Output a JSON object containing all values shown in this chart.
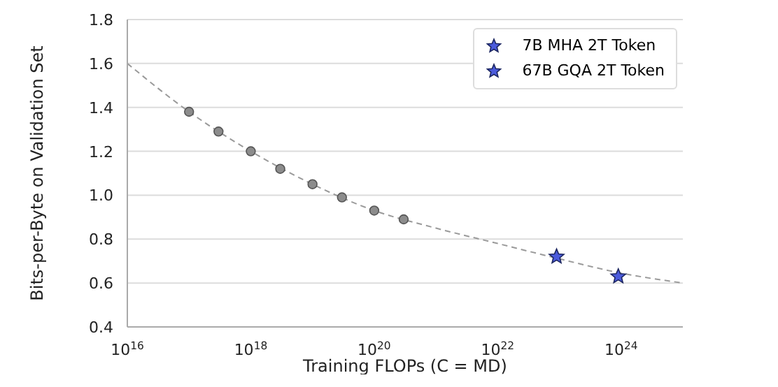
{
  "chart_data": {
    "type": "scatter",
    "xlabel": "Training FLOPs (C = MD)",
    "ylabel": "Bits-per-Byte on Validation Set",
    "log": "x",
    "xlim": [
      1e+16,
      1e+25
    ],
    "xticks": [
      {
        "value": 1e+16,
        "label": "10$^{16}$"
      },
      {
        "value": 1e+18,
        "label": "10$^{18}$"
      },
      {
        "value": 1e+20,
        "label": "10$^{20}$"
      },
      {
        "value": 1e+22,
        "label": "10$^{22}$"
      },
      {
        "value": 1e+24,
        "label": "10$^{24}$"
      }
    ],
    "ylim": [
      0.4,
      1.8
    ],
    "yticks": [
      0.4,
      0.6,
      0.8,
      {
        "value": 1,
        "label": "1.0"
      },
      1.2,
      1.4,
      1.6,
      1.8
    ],
    "grid": "y",
    "legend": "top right",
    "series": [
      {
        "type": "line",
        "color": "#9a9a9a",
        "line_style": "dashed",
        "marker": "none",
        "x": [
          1e+16,
          1e+17,
          1e+18,
          1e+19,
          1e+20,
          1e+21,
          1e+22,
          1e+23,
          1e+24,
          1e+25
        ],
        "values": [
          1.6,
          1.38,
          1.2,
          1.05,
          0.93,
          0.85,
          0.78,
          0.71,
          0.645,
          0.6
        ]
      },
      {
        "color": "#8c8c8c",
        "marker": "circle",
        "x": [
          1e+17,
          3e+17,
          1e+18,
          3e+18,
          1e+19,
          3e+19,
          1e+20,
          3e+20
        ],
        "values": [
          1.38,
          1.29,
          1.2,
          1.12,
          1.05,
          0.99,
          0.93,
          0.89
        ]
      },
      {
        "name": "7B MHA 2T Token",
        "color": "#4b5bdc",
        "marker": "star",
        "x": [
          9e+22
        ],
        "values": [
          0.72
        ]
      },
      {
        "name": "67B GQA 2T Token",
        "color": "#4b5bdc",
        "marker": "star",
        "x": [
          9e+23
        ],
        "values": [
          0.63
        ]
      }
    ]
  }
}
